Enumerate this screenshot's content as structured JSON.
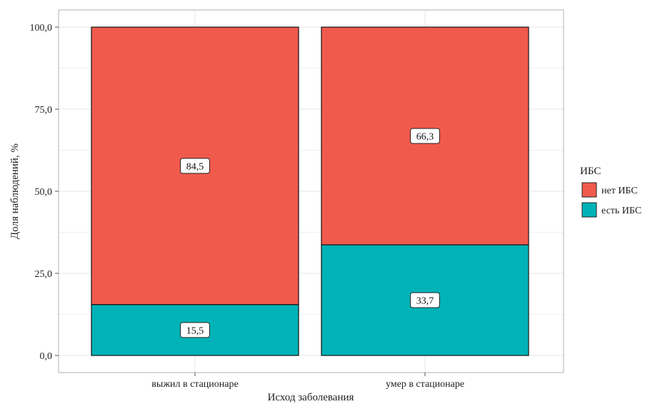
{
  "chart_data": {
    "type": "bar",
    "stacked": true,
    "categories": [
      "выжил в стационаре",
      "умер в стационаре"
    ],
    "series": [
      {
        "name": "есть ИБС",
        "values": [
          15.5,
          33.7
        ],
        "labels": [
          "15,5",
          "33,7"
        ],
        "color": "#00b3b8"
      },
      {
        "name": "нет ИБС",
        "values": [
          84.5,
          66.3
        ],
        "labels": [
          "84,5",
          "66,3"
        ],
        "color": "#f05a4d"
      }
    ],
    "xlabel": "Исход заболевания",
    "ylabel": "Доля наблюдений, %",
    "ylim": [
      0,
      100
    ],
    "yticks": [
      0,
      25,
      50,
      75,
      100
    ],
    "ytick_labels": [
      "0,0",
      "25,0",
      "50,0",
      "75,0",
      "100,0"
    ],
    "grid": true,
    "legend": {
      "title": "ИБС",
      "placement": "right",
      "entries": [
        {
          "label": "нет ИБС",
          "color": "#f05a4d"
        },
        {
          "label": "есть ИБС",
          "color": "#00b3b8"
        }
      ]
    }
  }
}
